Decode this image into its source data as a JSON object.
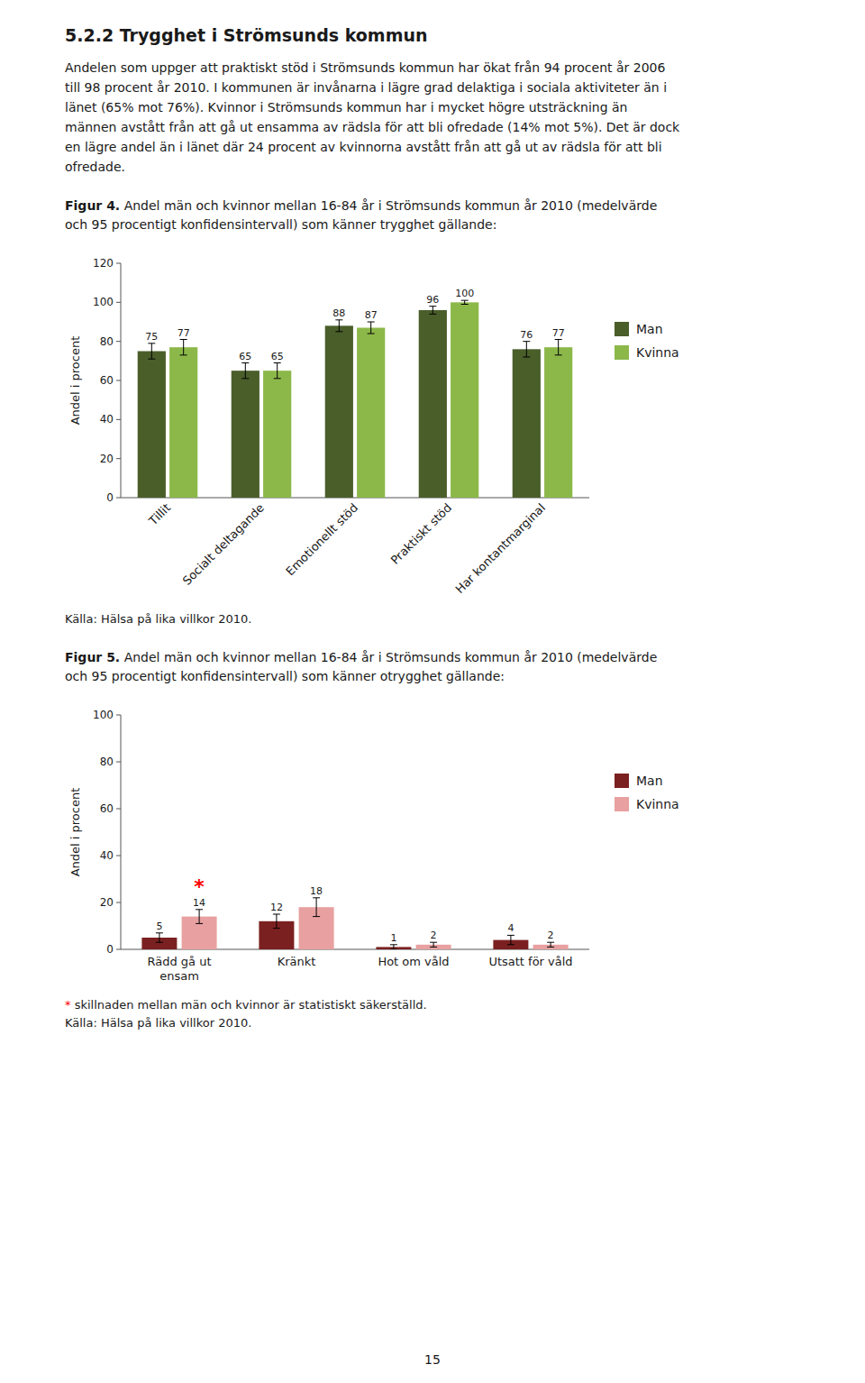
{
  "page_title": "5.2.2 Trygghet i Strömsunds kommun",
  "body_text": [
    "Andelen som uppger att praktiskt stöd i Strömsunds kommun har ökat från 94 procent år 2006",
    "till 98 procent år 2010. I kommunen är invånarna i lägre grad delaktiga i sociala aktiviteter än i",
    "länet (65% mot 76%). Kvinnor i Strömsunds kommun har i mycket högre utsträckning än",
    "männen avstått från att gå ut ensamma av rädsla för att bli ofredade (14% mot 5%). Det är dock",
    "en lägre andel än i länet där 24 procent av kvinnorna avstått från att gå ut av rädsla för att bli",
    "ofredade."
  ],
  "page_number": "15",
  "chart_data": [
    {
      "type": "bar",
      "caption_label": "Figur 4.",
      "caption": [
        "Andel män och kvinnor mellan 16-84 år i Strömsunds kommun år 2010 (medelvärde",
        "och 95 procentigt konfidensintervall) som känner trygghet gällande:"
      ],
      "categories": [
        "Tillit",
        "Socialt deltagande",
        "Emotionellt stöd",
        "Praktiskt stöd",
        "Har kontantmarginal"
      ],
      "series": [
        {
          "name": "Man",
          "color": "#4a5e2a",
          "values": [
            75,
            65,
            88,
            96,
            76
          ],
          "errors": [
            4,
            4,
            3,
            2,
            4
          ]
        },
        {
          "name": "Kvinna",
          "color": "#8cb84a",
          "values": [
            77,
            65,
            87,
            100,
            77
          ],
          "errors": [
            4,
            4,
            3,
            1,
            4
          ]
        }
      ],
      "ylabel": "Andel i procent",
      "ylim": [
        0,
        120
      ],
      "yticks": [
        0,
        20,
        40,
        60,
        80,
        100,
        120
      ],
      "grid": false,
      "legend": "right",
      "data_labels": true,
      "source": "Källa: Hälsa på lika villkor 2010."
    },
    {
      "type": "bar",
      "caption_label": "Figur 5.",
      "caption": [
        "Andel män och kvinnor mellan 16-84 år i Strömsunds kommun år 2010 (medelvärde",
        "och 95 procentigt konfidensintervall) som känner otrygghet gällande:"
      ],
      "categories": [
        "Rädd gå ut\nensam",
        "Kränkt",
        "Hot om våld",
        "Utsatt för våld"
      ],
      "series": [
        {
          "name": "Man",
          "color": "#7b2020",
          "values": [
            5,
            12,
            1,
            4
          ],
          "errors": [
            2,
            3,
            1,
            2
          ]
        },
        {
          "name": "Kvinna",
          "color": "#e8a0a0",
          "values": [
            14,
            18,
            2,
            2
          ],
          "errors": [
            3,
            4,
            1,
            1
          ]
        }
      ],
      "ylabel": "Andel i procent",
      "ylim": [
        0,
        100
      ],
      "yticks": [
        0,
        20,
        40,
        60,
        80,
        100
      ],
      "grid": false,
      "legend": "right",
      "data_labels": true,
      "annotations": [
        {
          "text": "*",
          "category": 0,
          "series": 1,
          "color": "red"
        }
      ],
      "footnote": {
        "marker": "*",
        "marker_color": "red",
        "text": "skillnaden mellan män och kvinnor är statistiskt säkerställd."
      },
      "source": "Källa: Hälsa på lika villkor 2010."
    }
  ]
}
